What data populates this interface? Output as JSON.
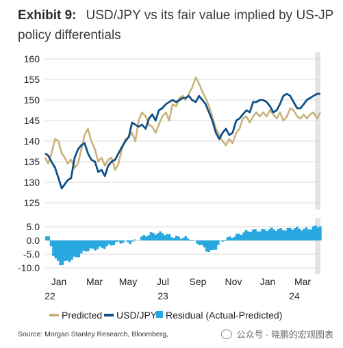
{
  "header": {
    "exhibit": "Exhibit 9:",
    "title": "USD/JPY vs its fair value implied by US-JP policy differentials"
  },
  "footer": {
    "source": "Source: Morgan Stanley Research, Bloomberg,",
    "watermark": "公众号 · 晓鹏的宏观图表"
  },
  "colors": {
    "predicted": "#c9b27a",
    "usdjpy": "#0d4f86",
    "residual": "#29a8e0",
    "shade": "#e4e4e4",
    "grid": "#d9d9d9"
  },
  "chart_data": [
    {
      "type": "line",
      "ylim": [
        125,
        160
      ],
      "yticks": [
        "160",
        "155",
        "150",
        "145",
        "140",
        "135",
        "130",
        "125"
      ],
      "x_range": [
        "2022-01-01",
        "2024-04-10"
      ],
      "shaded_period": [
        "2024-03-25",
        "2024-04-10"
      ],
      "series": [
        {
          "name": "Predicted",
          "points": [
            [
              "2022-01-01",
              136
            ],
            [
              "2022-01-10",
              134.5
            ],
            [
              "2022-01-20",
              137
            ],
            [
              "2022-01-31",
              140.5
            ],
            [
              "2022-02-10",
              140
            ],
            [
              "2022-02-20",
              137
            ],
            [
              "2022-03-01",
              136
            ],
            [
              "2022-03-10",
              134.5
            ],
            [
              "2022-03-20",
              135.5
            ],
            [
              "2022-03-31",
              133.5
            ],
            [
              "2022-04-10",
              134.5
            ],
            [
              "2022-04-20",
              138
            ],
            [
              "2022-04-30",
              141.5
            ],
            [
              "2022-05-10",
              143
            ],
            [
              "2022-05-20",
              140
            ],
            [
              "2022-05-31",
              138
            ],
            [
              "2022-06-10",
              135
            ],
            [
              "2022-06-20",
              136
            ],
            [
              "2022-06-30",
              134
            ],
            [
              "2022-07-10",
              135.5
            ],
            [
              "2022-07-20",
              136
            ],
            [
              "2022-07-31",
              133
            ],
            [
              "2022-08-10",
              134.5
            ],
            [
              "2022-08-20",
              138
            ],
            [
              "2022-08-31",
              140.5
            ],
            [
              "2022-09-10",
              141
            ],
            [
              "2022-09-20",
              142
            ],
            [
              "2022-09-30",
              140
            ],
            [
              "2022-10-10",
              145
            ],
            [
              "2022-10-20",
              147
            ],
            [
              "2022-10-31",
              146
            ],
            [
              "2022-11-10",
              144
            ],
            [
              "2022-11-20",
              143.5
            ],
            [
              "2022-11-30",
              142
            ],
            [
              "2022-12-10",
              144
            ],
            [
              "2022-12-20",
              146
            ],
            [
              "2022-12-31",
              147
            ],
            [
              "2023-01-10",
              145
            ],
            [
              "2023-01-20",
              149
            ],
            [
              "2023-01-31",
              148.5
            ],
            [
              "2023-02-10",
              150.5
            ],
            [
              "2023-02-20",
              151
            ],
            [
              "2023-02-28",
              150
            ],
            [
              "2023-03-10",
              151.5
            ],
            [
              "2023-03-20",
              153
            ],
            [
              "2023-03-31",
              155.5
            ],
            [
              "2023-04-10",
              154
            ],
            [
              "2023-04-20",
              152
            ],
            [
              "2023-04-30",
              150.5
            ],
            [
              "2023-05-10",
              148.5
            ],
            [
              "2023-05-20",
              146
            ],
            [
              "2023-05-31",
              143
            ],
            [
              "2023-06-10",
              141.5
            ],
            [
              "2023-06-20",
              140
            ],
            [
              "2023-06-30",
              139
            ],
            [
              "2023-07-10",
              140.5
            ],
            [
              "2023-07-20",
              139.5
            ],
            [
              "2023-07-31",
              142
            ],
            [
              "2023-08-10",
              143
            ],
            [
              "2023-08-20",
              145.5
            ],
            [
              "2023-08-31",
              146
            ],
            [
              "2023-09-10",
              144.5
            ],
            [
              "2023-09-20",
              146
            ],
            [
              "2023-09-30",
              147
            ],
            [
              "2023-10-10",
              146
            ],
            [
              "2023-10-20",
              147
            ],
            [
              "2023-10-31",
              146
            ],
            [
              "2023-11-10",
              147.5
            ],
            [
              "2023-11-20",
              146.5
            ],
            [
              "2023-11-30",
              145.5
            ],
            [
              "2023-12-10",
              147
            ],
            [
              "2023-12-20",
              145
            ],
            [
              "2023-12-31",
              146
            ],
            [
              "2024-01-10",
              148
            ],
            [
              "2024-01-20",
              147.5
            ],
            [
              "2024-01-31",
              146
            ],
            [
              "2024-02-10",
              145.5
            ],
            [
              "2024-02-20",
              146.5
            ],
            [
              "2024-02-29",
              145.5
            ],
            [
              "2024-03-10",
              146.5
            ],
            [
              "2024-03-20",
              147
            ],
            [
              "2024-03-31",
              145.5
            ],
            [
              "2024-04-10",
              147
            ]
          ]
        },
        {
          "name": "USD/JPY",
          "points": [
            [
              "2022-01-01",
              137
            ],
            [
              "2022-01-10",
              136.5
            ],
            [
              "2022-01-20",
              135
            ],
            [
              "2022-01-31",
              133.5
            ],
            [
              "2022-02-10",
              131
            ],
            [
              "2022-02-20",
              128.5
            ],
            [
              "2022-03-01",
              129.5
            ],
            [
              "2022-03-10",
              130.5
            ],
            [
              "2022-03-20",
              131
            ],
            [
              "2022-03-31",
              136
            ],
            [
              "2022-04-10",
              138
            ],
            [
              "2022-04-20",
              139
            ],
            [
              "2022-04-30",
              139.5
            ],
            [
              "2022-05-10",
              137
            ],
            [
              "2022-05-20",
              135.5
            ],
            [
              "2022-05-31",
              135
            ],
            [
              "2022-06-10",
              132.5
            ],
            [
              "2022-06-20",
              133
            ],
            [
              "2022-06-30",
              131.5
            ],
            [
              "2022-07-10",
              134
            ],
            [
              "2022-07-20",
              135
            ],
            [
              "2022-07-31",
              135.5
            ],
            [
              "2022-08-10",
              137
            ],
            [
              "2022-08-20",
              138.5
            ],
            [
              "2022-08-31",
              140
            ],
            [
              "2022-09-10",
              141
            ],
            [
              "2022-09-20",
              144.5
            ],
            [
              "2022-09-30",
              144
            ],
            [
              "2022-10-10",
              143.5
            ],
            [
              "2022-10-20",
              144
            ],
            [
              "2022-10-31",
              143
            ],
            [
              "2022-11-10",
              145.5
            ],
            [
              "2022-11-20",
              146.5
            ],
            [
              "2022-11-30",
              145
            ],
            [
              "2022-12-10",
              147.5
            ],
            [
              "2022-12-20",
              148
            ],
            [
              "2022-12-31",
              149
            ],
            [
              "2023-01-10",
              149.5
            ],
            [
              "2023-01-20",
              150
            ],
            [
              "2023-01-31",
              149.5
            ],
            [
              "2023-02-10",
              150
            ],
            [
              "2023-02-20",
              150.5
            ],
            [
              "2023-02-28",
              150.5
            ],
            [
              "2023-03-10",
              151
            ],
            [
              "2023-03-20",
              150
            ],
            [
              "2023-03-31",
              149.5
            ],
            [
              "2023-04-10",
              151
            ],
            [
              "2023-04-20",
              150
            ],
            [
              "2023-04-30",
              149
            ],
            [
              "2023-05-10",
              147
            ],
            [
              "2023-05-20",
              145
            ],
            [
              "2023-05-31",
              142
            ],
            [
              "2023-06-10",
              140.5
            ],
            [
              "2023-06-20",
              142
            ],
            [
              "2023-06-30",
              143
            ],
            [
              "2023-07-10",
              141.5
            ],
            [
              "2023-07-20",
              142
            ],
            [
              "2023-07-31",
              145
            ],
            [
              "2023-08-10",
              145.5
            ],
            [
              "2023-08-20",
              146.5
            ],
            [
              "2023-08-31",
              147.5
            ],
            [
              "2023-09-10",
              147
            ],
            [
              "2023-09-20",
              149.5
            ],
            [
              "2023-09-30",
              149.5
            ],
            [
              "2023-10-10",
              150
            ],
            [
              "2023-10-20",
              150
            ],
            [
              "2023-10-31",
              149.5
            ],
            [
              "2023-11-10",
              148.5
            ],
            [
              "2023-11-20",
              147
            ],
            [
              "2023-11-30",
              147.5
            ],
            [
              "2023-12-10",
              149
            ],
            [
              "2023-12-20",
              151
            ],
            [
              "2023-12-31",
              151.5
            ],
            [
              "2024-01-10",
              151
            ],
            [
              "2024-01-20",
              149.5
            ],
            [
              "2024-01-31",
              148
            ],
            [
              "2024-02-10",
              148
            ],
            [
              "2024-02-20",
              149
            ],
            [
              "2024-02-29",
              150
            ],
            [
              "2024-03-10",
              150.5
            ],
            [
              "2024-03-20",
              151
            ],
            [
              "2024-03-31",
              151.5
            ],
            [
              "2024-04-10",
              151.5
            ]
          ]
        }
      ]
    },
    {
      "type": "bar",
      "series_name": "Residual (Actual-Predicted)",
      "ylim": [
        -10,
        5
      ],
      "yticks": [
        "5.0",
        "0.0",
        "-5.0",
        "-10.0"
      ],
      "x_range": [
        "2022-01-01",
        "2024-04-10"
      ],
      "shaded_period": [
        "2024-03-25",
        "2024-04-10"
      ],
      "bin_days": 7,
      "keyframes": [
        [
          "2022-01-01",
          1.5
        ],
        [
          "2022-01-10",
          0.5
        ],
        [
          "2022-01-20",
          -5
        ],
        [
          "2022-02-01",
          -8
        ],
        [
          "2022-02-15",
          -9
        ],
        [
          "2022-03-01",
          -7.5
        ],
        [
          "2022-03-20",
          -6.5
        ],
        [
          "2022-04-10",
          -5.5
        ],
        [
          "2022-05-01",
          -4
        ],
        [
          "2022-05-20",
          -3.5
        ],
        [
          "2022-06-10",
          -2.5
        ],
        [
          "2022-07-01",
          -2
        ],
        [
          "2022-07-20",
          -1.5
        ],
        [
          "2022-08-15",
          -1
        ],
        [
          "2022-09-10",
          -0.5
        ],
        [
          "2022-10-01",
          0.5
        ],
        [
          "2022-10-20",
          1.5
        ],
        [
          "2022-11-10",
          2
        ],
        [
          "2022-12-01",
          2.5
        ],
        [
          "2022-12-20",
          3
        ],
        [
          "2023-01-10",
          2
        ],
        [
          "2023-02-01",
          1
        ],
        [
          "2023-03-01",
          0.5
        ],
        [
          "2023-03-20",
          0
        ],
        [
          "2023-04-10",
          -1
        ],
        [
          "2023-04-25",
          -3
        ],
        [
          "2023-05-10",
          -4.5
        ],
        [
          "2023-05-25",
          -3.5
        ],
        [
          "2023-06-10",
          -1
        ],
        [
          "2023-07-01",
          1
        ],
        [
          "2023-07-20",
          2
        ],
        [
          "2023-08-10",
          2.5
        ],
        [
          "2023-09-01",
          3
        ],
        [
          "2023-09-20",
          3.5
        ],
        [
          "2023-10-10",
          4
        ],
        [
          "2023-11-01",
          4.5
        ],
        [
          "2023-11-20",
          4
        ],
        [
          "2023-12-10",
          3.5
        ],
        [
          "2024-01-01",
          4
        ],
        [
          "2024-01-20",
          5
        ],
        [
          "2024-02-10",
          4.5
        ],
        [
          "2024-03-01",
          4
        ],
        [
          "2024-03-20",
          4.5
        ],
        [
          "2024-04-10",
          5.5
        ]
      ]
    }
  ],
  "xaxis": {
    "months": [
      {
        "date": "2022-01-15",
        "label": "Jan"
      },
      {
        "date": "2022-03-15",
        "label": "Mar"
      },
      {
        "date": "2022-05-15",
        "label": "May"
      },
      {
        "date": "2022-07-15",
        "label": "Jul"
      },
      {
        "date": "2022-09-15",
        "label": "Sep"
      },
      {
        "date": "2022-11-15",
        "label": "Nov"
      },
      {
        "date": "2023-01-15",
        "label": "Jan"
      },
      {
        "date": "2023-03-15",
        "label": "Mar"
      }
    ],
    "years": [
      {
        "date": "2022-01-01",
        "label": "22"
      },
      {
        "date": "2023-01-01",
        "label": "23"
      },
      {
        "date": "2024-01-01",
        "label": "24"
      }
    ]
  },
  "legend": {
    "items": [
      {
        "label": "Predicted",
        "color": "#c9b27a"
      },
      {
        "label": "USD/JPY",
        "color": "#0d4f86"
      },
      {
        "label": "Residual (Actual-Predicted)",
        "color": "#29a8e0"
      }
    ]
  }
}
